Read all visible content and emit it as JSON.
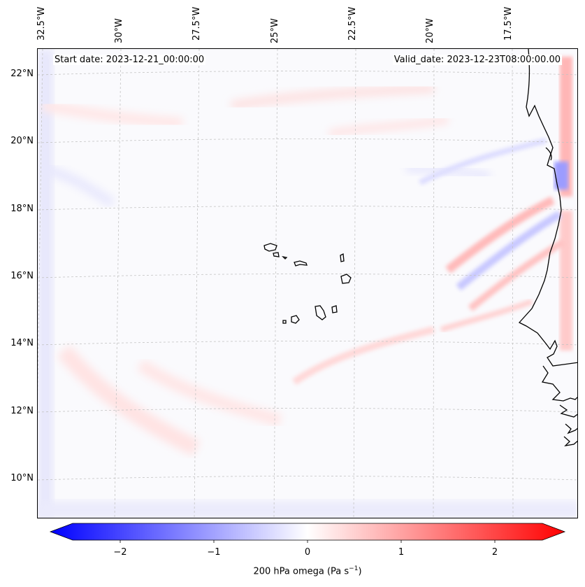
{
  "header": {
    "start_date": "Start date: 2023-12-21_00:00:00",
    "valid_date": "Valid_date: 2023-12-23T08:00:00.00"
  },
  "longitude_labels": [
    "32.5°W",
    "30°W",
    "27.5°W",
    "25°W",
    "22.5°W",
    "20°W",
    "17.5°W"
  ],
  "latitude_labels": [
    "22°N",
    "20°N",
    "18°N",
    "16°N",
    "14°N",
    "12°N",
    "10°N"
  ],
  "colorbar": {
    "label_prefix": "200 hPa omega (Pa s",
    "label_exponent": "−1",
    "label_suffix": ")",
    "ticks": [
      "−2",
      "−1",
      "0",
      "1",
      "2"
    ],
    "min": -2.6,
    "max": 2.6,
    "low_color": "#0000ff",
    "mid_color": "#ffffff",
    "high_color": "#ff0000"
  },
  "colors": {
    "coastline": "#000000",
    "gridline": "#b8b8b8",
    "background_field": "#fbfbfe"
  }
}
